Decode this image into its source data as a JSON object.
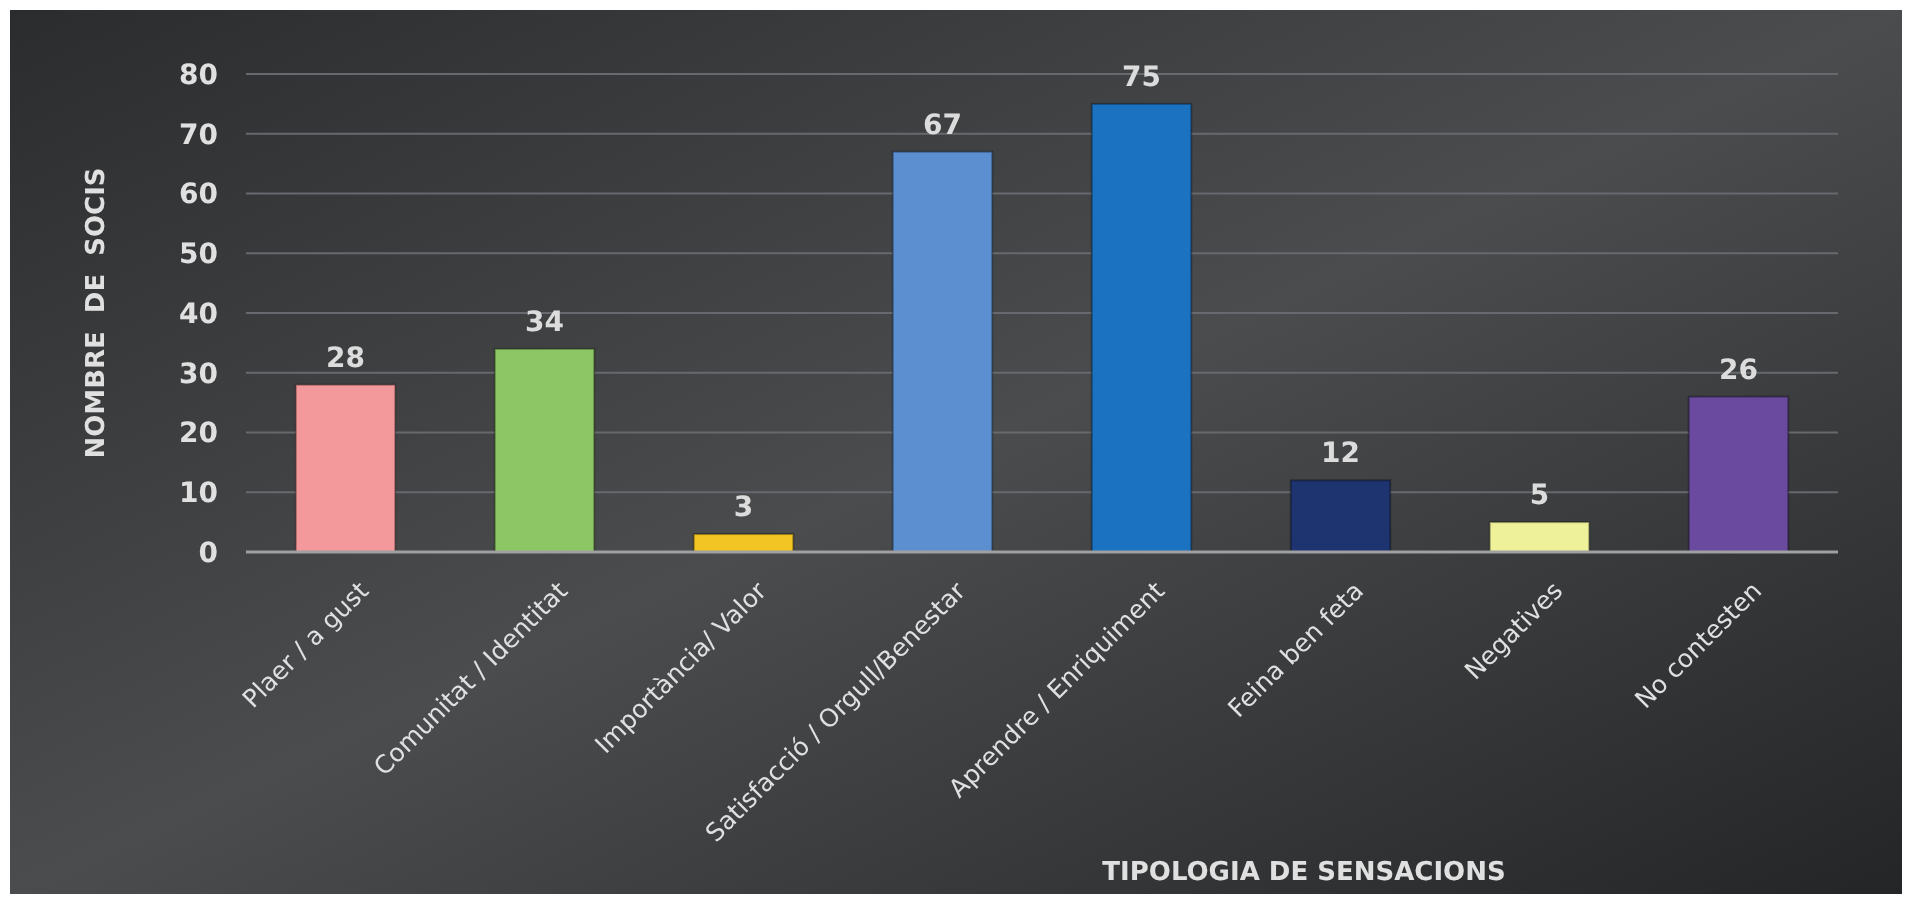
{
  "chart_data": {
    "type": "bar",
    "xlabel": "TIPOLOGIA DE SENSACIONS",
    "ylabel": "NOMBRE  DE  SOCIS",
    "categories": [
      "Plaer / a gust",
      "Comunitat / Identitat",
      "Importància/ Valor",
      "Satisfacció / Orgull/Benestar",
      "Aprendre / Enriquiment",
      "Feina ben feta",
      "Negatives",
      "No contesten"
    ],
    "values": [
      28,
      34,
      3,
      67,
      75,
      12,
      5,
      26
    ],
    "colors": [
      "#f4999b",
      "#8dc765",
      "#f2c524",
      "#5b8fd0",
      "#1a72c0",
      "#1d3470",
      "#eef09a",
      "#6a4a9e"
    ],
    "ylim": [
      0,
      80
    ],
    "yticks": [
      0,
      10,
      20,
      30,
      40,
      50,
      60,
      70,
      80
    ],
    "grid": "y",
    "data_labels": true
  }
}
